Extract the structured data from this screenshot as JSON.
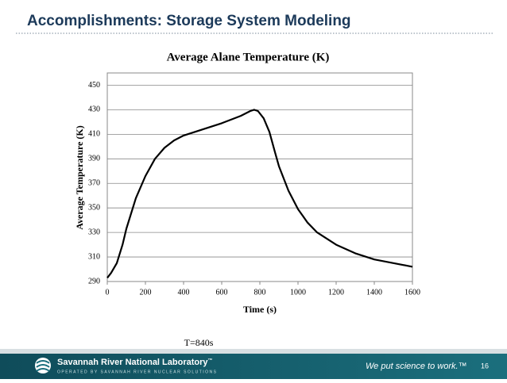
{
  "slide": {
    "title": "Accomplishments: Storage System Modeling",
    "annotation": "T=840s",
    "logo_name": "Savannah River National Laboratory",
    "logo_tm": "™",
    "logo_sub": "OPERATED BY SAVANNAH RIVER NUCLEAR SOLUTIONS",
    "tagline": "We put science to work.™",
    "page_number": "16"
  },
  "chart_data": {
    "type": "line",
    "title": "Average Alane Temperature (K)",
    "x_label": "Time (s)",
    "y_label": "Average Temperature (K)",
    "x": [
      0,
      20,
      50,
      80,
      100,
      150,
      200,
      250,
      300,
      350,
      400,
      500,
      600,
      700,
      750,
      770,
      790,
      820,
      850,
      880,
      900,
      950,
      1000,
      1050,
      1100,
      1200,
      1300,
      1400,
      1500,
      1600
    ],
    "series": [
      {
        "name": "Average Alane Temperature",
        "color": "#000000",
        "values": [
          293,
          297,
          305,
          320,
          333,
          358,
          376,
          390,
          399,
          405,
          409,
          414,
          419,
          425,
          429,
          430,
          429,
          423,
          412,
          395,
          384,
          364,
          349,
          338,
          330,
          320,
          313,
          308,
          305,
          302
        ]
      }
    ],
    "xlim": [
      0,
      1600
    ],
    "xticks": [
      0,
      200,
      400,
      600,
      800,
      1000,
      1200,
      1400,
      1600
    ],
    "ylim": [
      290,
      460
    ],
    "yticks": [
      290,
      310,
      330,
      350,
      370,
      390,
      410,
      430,
      450
    ],
    "grid": true
  }
}
